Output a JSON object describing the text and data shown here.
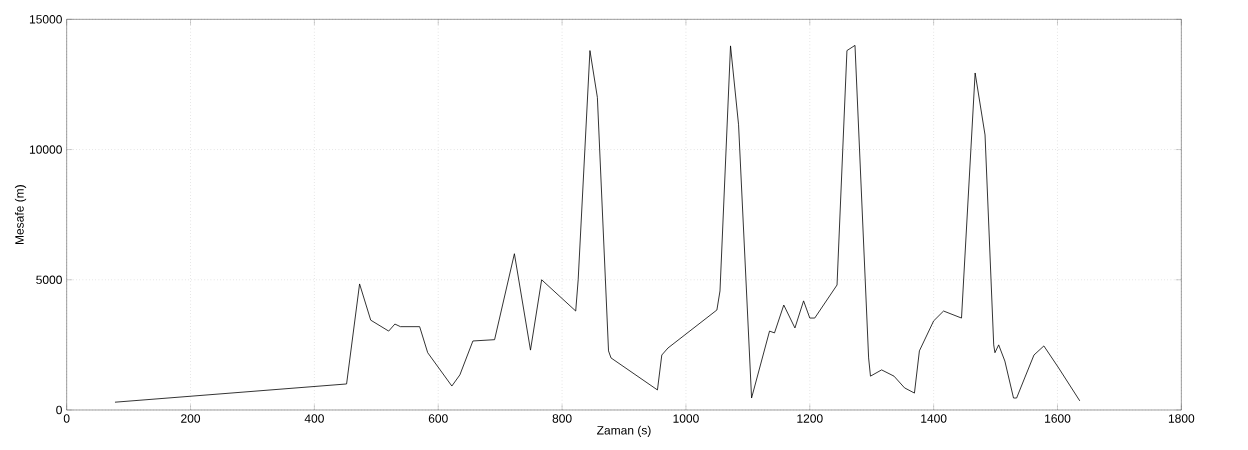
{
  "chart_data": {
    "type": "line",
    "xlabel": "Zaman (s)",
    "ylabel": "Mesafe (m)",
    "xlim": [
      0,
      1800
    ],
    "ylim": [
      0,
      15000
    ],
    "xticks": [
      0,
      200,
      400,
      600,
      800,
      1000,
      1200,
      1400,
      1600,
      1800
    ],
    "yticks": [
      0,
      5000,
      10000,
      15000
    ],
    "grid": true,
    "line_style": "solid",
    "series": [
      {
        "color": "#000000",
        "x": [
          78,
          452,
          473,
          491,
          520,
          530,
          539,
          570,
          583,
          622,
          635,
          656,
          691,
          723,
          749,
          767,
          822,
          826,
          845,
          857,
          875,
          879,
          954,
          961,
          971,
          1050,
          1055,
          1072,
          1085,
          1106,
          1135,
          1143,
          1158,
          1176,
          1190,
          1200,
          1208,
          1244,
          1260,
          1273,
          1295,
          1298,
          1316,
          1336,
          1353,
          1369,
          1377,
          1400,
          1416,
          1445,
          1467,
          1483,
          1497,
          1499,
          1505,
          1515,
          1529,
          1534,
          1547,
          1562,
          1578,
          1602,
          1636
        ],
        "values": [
          300,
          1000,
          4840,
          3450,
          3030,
          3300,
          3200,
          3200,
          2200,
          920,
          1350,
          2650,
          2700,
          6000,
          2300,
          5000,
          3800,
          5000,
          13800,
          12000,
          2270,
          2000,
          770,
          2110,
          2380,
          3840,
          4570,
          13980,
          10950,
          460,
          3030,
          2960,
          4030,
          3150,
          4190,
          3530,
          3530,
          4800,
          13800,
          14000,
          2000,
          1300,
          1540,
          1300,
          850,
          650,
          2270,
          3420,
          3800,
          3530,
          12940,
          10560,
          2500,
          2200,
          2500,
          1880,
          460,
          460,
          1230,
          2110,
          2460,
          1610,
          350
        ]
      }
    ]
  }
}
